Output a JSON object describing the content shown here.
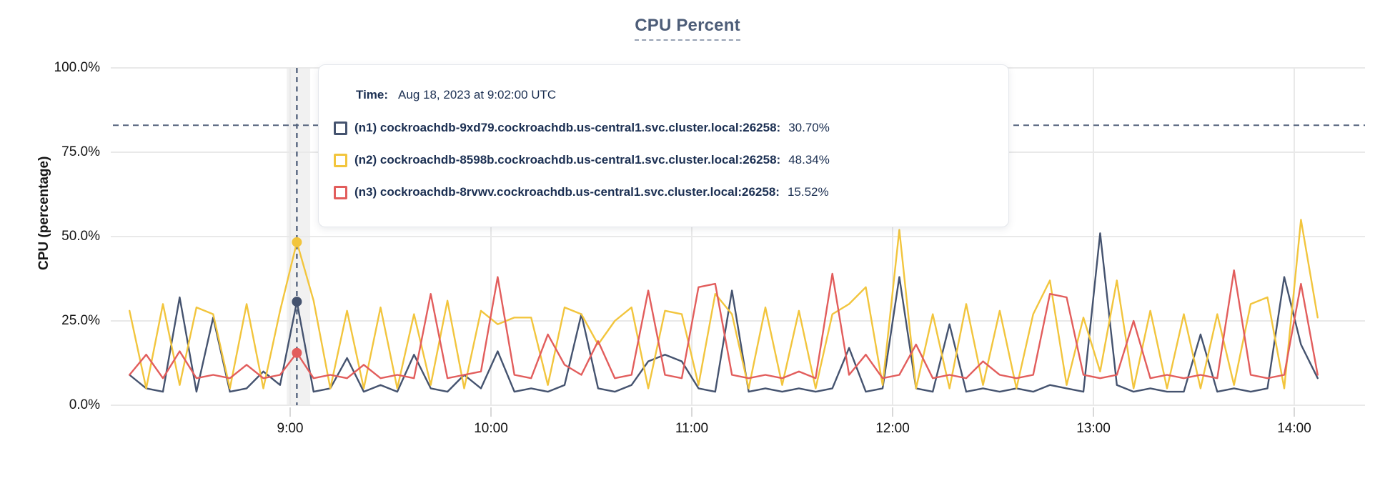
{
  "title": "CPU Percent",
  "colors": {
    "series_n1": "#45536f",
    "series_n2": "#f2c53d",
    "series_n3": "#e25d5c",
    "gridline": "#e9e9e9",
    "axis_tick": "#d8d8d8",
    "dashed_guide": "#55647e",
    "hover_band": "rgba(0,0,0,0.055)",
    "tooltip_text": "#1b2f52",
    "title_text": "#4d5d78"
  },
  "y_axis": {
    "title": "CPU (percentage)",
    "ticks": [
      {
        "value": 0,
        "label": "0.0%"
      },
      {
        "value": 25,
        "label": "25.0%"
      },
      {
        "value": 50,
        "label": "50.0%"
      },
      {
        "value": 75,
        "label": "75.0%"
      },
      {
        "value": 100,
        "label": "100.0%"
      }
    ]
  },
  "x_axis": {
    "ticks": [
      {
        "minutes": 540,
        "label": "9:00"
      },
      {
        "minutes": 600,
        "label": "10:00"
      },
      {
        "minutes": 660,
        "label": "11:00"
      },
      {
        "minutes": 720,
        "label": "12:00"
      },
      {
        "minutes": 780,
        "label": "13:00"
      },
      {
        "minutes": 840,
        "label": "14:00"
      }
    ]
  },
  "tooltip": {
    "time_label": "Time:",
    "time_value": "Aug 18, 2023 at 9:02:00 UTC"
  },
  "hover": {
    "minutes": 542,
    "band_minutes_before": 3,
    "band_minutes_after": 4
  },
  "chart_data": {
    "type": "line",
    "title": "CPU Percent",
    "ylabel": "CPU (percentage)",
    "ylim": [
      0,
      100
    ],
    "grid": true,
    "threshold_dashed_percent": 83,
    "x_start_clock": "8:12",
    "x_start_minutes": 492,
    "x_step_minutes": 5,
    "x_end_clock": "14:07",
    "hover_time": "9:02",
    "series": [
      {
        "id": "n1",
        "label": "(n1) cockroachdb-9xd79.cockroachdb.us-central1.svc.cluster.local:26258:",
        "hover_value": "30.70%",
        "hover_percent": 30.7,
        "color": "#45536f",
        "values": [
          9,
          5,
          4,
          32,
          4,
          26,
          4,
          5,
          10,
          6,
          30.7,
          4,
          5,
          14,
          4,
          6,
          4,
          15,
          5,
          4,
          9,
          5,
          16,
          4,
          5,
          4,
          6,
          27,
          5,
          4,
          6,
          13,
          15,
          13,
          5,
          4,
          34,
          4,
          5,
          4,
          5,
          4,
          5,
          17,
          4,
          5,
          38,
          5,
          4,
          24,
          4,
          5,
          4,
          5,
          4,
          6,
          5,
          4,
          51,
          6,
          4,
          5,
          4,
          4,
          21,
          4,
          5,
          4,
          5,
          38,
          18,
          8
        ]
      },
      {
        "id": "n2",
        "label": "(n2) cockroachdb-8598b.cockroachdb.us-central1.svc.cluster.local:26258:",
        "hover_value": "48.34%",
        "hover_percent": 48.34,
        "color": "#f2c53d",
        "values": [
          28,
          5,
          30,
          6,
          29,
          27,
          5,
          30,
          5,
          28,
          48.34,
          31,
          5,
          28,
          5,
          29,
          5,
          27,
          6,
          31,
          5,
          28,
          24,
          26,
          26,
          6,
          29,
          27,
          18,
          25,
          29,
          5,
          28,
          27,
          6,
          33,
          27,
          5,
          29,
          6,
          28,
          5,
          27,
          30,
          35,
          6,
          52,
          5,
          27,
          5,
          30,
          6,
          28,
          5,
          27,
          37,
          6,
          26,
          10,
          37,
          5,
          28,
          5,
          27,
          5,
          27,
          6,
          30,
          32,
          5,
          55,
          26
        ]
      },
      {
        "id": "n3",
        "label": "(n3) cockroachdb-8rvwv.cockroachdb.us-central1.svc.cluster.local:26258:",
        "hover_value": "15.52%",
        "hover_percent": 15.52,
        "color": "#e25d5c",
        "values": [
          9,
          15,
          8,
          16,
          8,
          9,
          8,
          12,
          8,
          9,
          15.52,
          8,
          9,
          8,
          12,
          8,
          9,
          8,
          33,
          8,
          9,
          10,
          38,
          9,
          8,
          21,
          12,
          9,
          19,
          8,
          9,
          34,
          9,
          8,
          35,
          36,
          9,
          8,
          9,
          8,
          10,
          8,
          39,
          9,
          15,
          8,
          9,
          18,
          8,
          9,
          8,
          13,
          9,
          8,
          9,
          33,
          32,
          9,
          8,
          9,
          25,
          8,
          9,
          8,
          9,
          8,
          40,
          9,
          8,
          9,
          36,
          9
        ]
      }
    ]
  }
}
